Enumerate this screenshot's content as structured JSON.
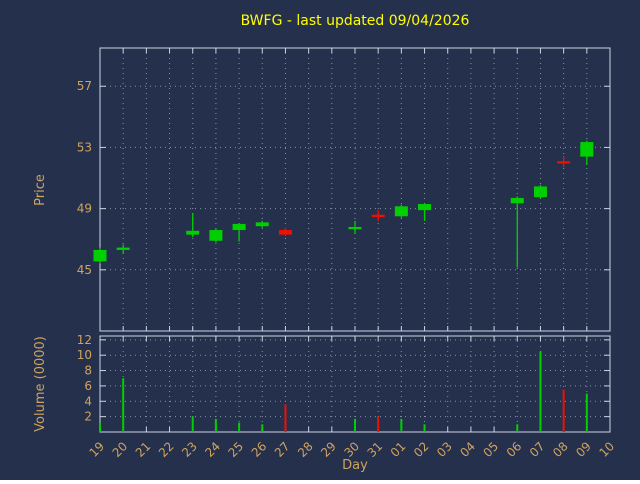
{
  "title": "BWFG - last updated 09/04/2026",
  "chart_data": {
    "type": "candlestick_with_volume",
    "title": "BWFG - last updated 09/04/2026",
    "price_axis": {
      "label": "Price",
      "ticks": [
        45,
        49,
        53,
        57
      ],
      "range": [
        41,
        59.5
      ]
    },
    "volume_axis": {
      "label": "Volume (0000)",
      "ticks": [
        2,
        4,
        6,
        8,
        10,
        12
      ],
      "range": [
        0,
        12.5
      ]
    },
    "x_axis": {
      "label": "Day",
      "ticks": [
        "19",
        "20",
        "21",
        "22",
        "23",
        "24",
        "25",
        "26",
        "27",
        "28",
        "29",
        "30",
        "31",
        "01",
        "02",
        "03",
        "04",
        "05",
        "06",
        "07",
        "08",
        "09",
        "10"
      ]
    },
    "grid": "dotted",
    "colors": {
      "background": "#25304d",
      "title": "#ffff00",
      "axis_text": "#cfa35f",
      "border": "#cdd5e0",
      "grid": "#8892a8",
      "up": "#00d000",
      "down": "#f01000"
    },
    "candles": [
      {
        "day": "19",
        "open": 45.55,
        "high": 46.45,
        "low": 45.4,
        "close": 46.3,
        "volume": 1.2
      },
      {
        "day": "20",
        "open": 46.3,
        "high": 46.65,
        "low": 46.05,
        "close": 46.45,
        "volume": 7.0
      },
      {
        "day": "23",
        "open": 47.3,
        "high": 48.7,
        "low": 47.15,
        "close": 47.55,
        "volume": 2.0
      },
      {
        "day": "24",
        "open": 46.9,
        "high": 47.7,
        "low": 46.8,
        "close": 47.6,
        "volume": 1.7
      },
      {
        "day": "25",
        "open": 47.6,
        "high": 48.05,
        "low": 46.85,
        "close": 48.0,
        "volume": 1.2
      },
      {
        "day": "26",
        "open": 47.85,
        "high": 48.2,
        "low": 47.75,
        "close": 48.1,
        "volume": 1.0
      },
      {
        "day": "27",
        "open": 47.6,
        "high": 47.75,
        "low": 47.2,
        "close": 47.3,
        "volume": 3.6
      },
      {
        "day": "30",
        "open": 47.65,
        "high": 48.2,
        "low": 47.4,
        "close": 47.8,
        "volume": 1.7
      },
      {
        "day": "31",
        "open": 48.6,
        "high": 48.9,
        "low": 48.2,
        "close": 48.45,
        "volume": 2.0
      },
      {
        "day": "01",
        "open": 48.5,
        "high": 49.25,
        "low": 48.4,
        "close": 49.15,
        "volume": 1.7
      },
      {
        "day": "02",
        "open": 48.9,
        "high": 49.35,
        "low": 48.2,
        "close": 49.3,
        "volume": 1.0
      },
      {
        "day": "06",
        "open": 49.35,
        "high": 49.8,
        "low": 45.15,
        "close": 49.7,
        "volume": 1.0
      },
      {
        "day": "07",
        "open": 49.75,
        "high": 50.55,
        "low": 49.65,
        "close": 50.45,
        "volume": 10.5
      },
      {
        "day": "08",
        "open": 52.1,
        "high": 52.45,
        "low": 51.7,
        "close": 51.95,
        "volume": 5.5
      },
      {
        "day": "09",
        "open": 52.4,
        "high": 53.45,
        "low": 51.85,
        "close": 53.35,
        "volume": 5.0
      }
    ]
  }
}
